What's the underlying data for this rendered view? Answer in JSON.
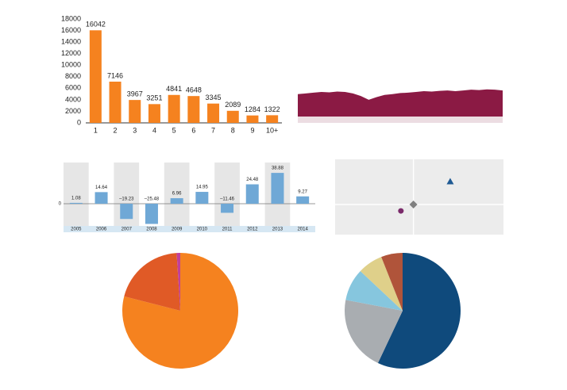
{
  "chart_data": [
    {
      "type": "bar",
      "categories": [
        "1",
        "2",
        "3",
        "4",
        "5",
        "6",
        "7",
        "8",
        "9",
        "10+"
      ],
      "values": [
        16042,
        7146,
        3967,
        3251,
        4841,
        4648,
        3345,
        2089,
        1284,
        1322
      ],
      "color": "#f5821f",
      "ylim": [
        0,
        18000
      ],
      "yticks": [
        0,
        2000,
        4000,
        6000,
        8000,
        10000,
        12000,
        14000,
        16000,
        18000
      ]
    },
    {
      "type": "area",
      "values": [
        60,
        62,
        64,
        66,
        65,
        67,
        66,
        62,
        55,
        45,
        52,
        58,
        60,
        63,
        64,
        66,
        68,
        67,
        69,
        70,
        68,
        70,
        72,
        71,
        73,
        72,
        70
      ],
      "color": "#8b1a44",
      "ylim": [
        0,
        100
      ]
    },
    {
      "type": "column",
      "categories": [
        "2005",
        "2006",
        "2007",
        "2008",
        "2009",
        "2010",
        "2011",
        "2012",
        "2013",
        "2014"
      ],
      "values": [
        1.08,
        14.64,
        -19.23,
        -25.48,
        6.96,
        14.95,
        -11.46,
        24.48,
        38.88,
        9.27
      ],
      "value_labels": [
        "1.08",
        "14.64",
        "–19.23",
        "–25.48",
        "6.96",
        "14.95",
        "–11.46",
        "24.48",
        "38.88",
        "9.27"
      ],
      "color": "#6fa8d6",
      "ylim": [
        -28,
        52
      ],
      "yticks": [
        0
      ]
    },
    {
      "type": "scatter",
      "xlim": [
        -1,
        1.15
      ],
      "ylim": [
        -0.8,
        1.2
      ],
      "series": [
        {
          "color": "#1f5a94",
          "marker": "triangle",
          "x": [
            0.47
          ],
          "y": [
            0.61
          ]
        },
        {
          "color": "#808080",
          "marker": "diamond",
          "x": [
            0
          ],
          "y": [
            0
          ]
        },
        {
          "color": "#7a2a6a",
          "marker": "circle",
          "x": [
            -0.16
          ],
          "y": [
            -0.17
          ]
        }
      ]
    },
    {
      "type": "pie",
      "values": [
        79,
        20,
        1
      ],
      "colors": [
        "#f5821f",
        "#e05a26",
        "#c1409a"
      ]
    },
    {
      "type": "pie",
      "values": [
        57,
        21,
        9,
        7,
        6
      ],
      "colors": [
        "#0f4a7c",
        "#a9adb1",
        "#86c6de",
        "#dfd08a",
        "#b0543a"
      ]
    }
  ]
}
